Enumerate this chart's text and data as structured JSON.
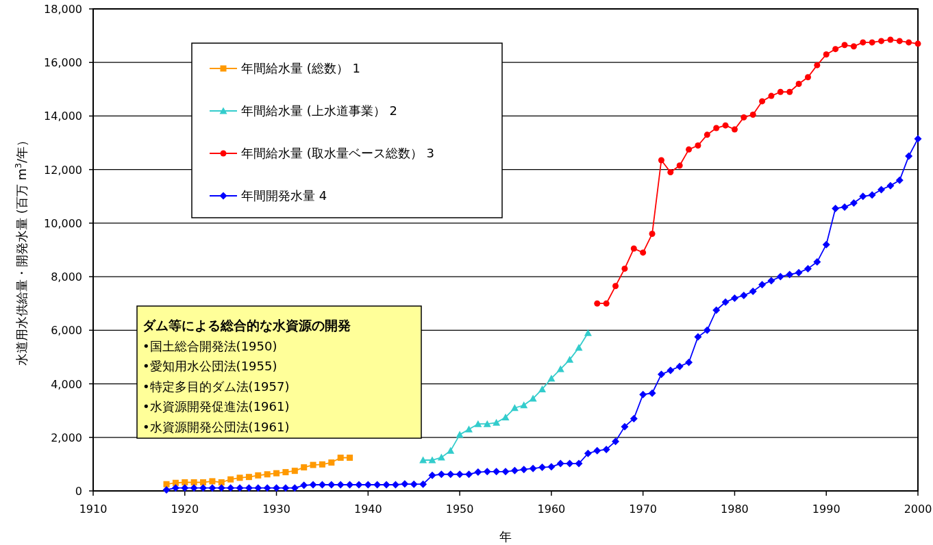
{
  "chart_data": {
    "type": "line",
    "xlabel": "年",
    "ylabel": "水道用水供給量・開発水量 (百万 m$^{3}$/年）",
    "xlim": [
      1910,
      2000
    ],
    "xticks": [
      1910,
      1920,
      1930,
      1940,
      1950,
      1960,
      1970,
      1980,
      1990,
      2000
    ],
    "ylim": [
      0,
      18000
    ],
    "yticks": [
      {
        "value": 0,
        "label": "0"
      },
      {
        "value": 2000,
        "label": "2,000"
      },
      {
        "value": 4000,
        "label": "4,000"
      },
      {
        "value": 6000,
        "label": "6,000"
      },
      {
        "value": 8000,
        "label": "8,000"
      },
      {
        "value": 10000,
        "label": "10,000"
      },
      {
        "value": 12000,
        "label": "12,000"
      },
      {
        "value": 14000,
        "label": "14,000"
      },
      {
        "value": 16000,
        "label": "16,000"
      },
      {
        "value": 18000,
        "label": "18,000"
      }
    ],
    "grid": "y",
    "legend": "top left",
    "line_style": "solid",
    "series": [
      {
        "name": "年間給水量 (総数） 1",
        "color": "#ff9900",
        "marker": "square",
        "x": [
          1918,
          1919,
          1920,
          1921,
          1922,
          1923,
          1924,
          1925,
          1926,
          1927,
          1928,
          1929,
          1930,
          1931,
          1932,
          1933,
          1934,
          1935,
          1936,
          1937,
          1938
        ],
        "values": [
          250,
          300,
          320,
          320,
          320,
          360,
          320,
          430,
          490,
          520,
          580,
          620,
          660,
          700,
          750,
          880,
          970,
          990,
          1060,
          1240,
          1240
        ]
      },
      {
        "name": "年間給水量 (上水道事業） 2",
        "color": "#33cccc",
        "marker": "triangle",
        "x": [
          1946,
          1947,
          1948,
          1949,
          1950,
          1951,
          1952,
          1953,
          1954,
          1955,
          1956,
          1957,
          1958,
          1959,
          1960,
          1961,
          1962,
          1963,
          1964
        ],
        "values": [
          1150,
          1150,
          1250,
          1500,
          2100,
          2300,
          2500,
          2500,
          2550,
          2750,
          3100,
          3200,
          3450,
          3800,
          4200,
          4550,
          4900,
          5350,
          5900
        ]
      },
      {
        "name": "年間給水量 (取水量ベース総数） 3",
        "color": "#ff0000",
        "marker": "circle",
        "x": [
          1965,
          1966,
          1967,
          1968,
          1969,
          1970,
          1971,
          1972,
          1973,
          1974,
          1975,
          1976,
          1977,
          1978,
          1979,
          1980,
          1981,
          1982,
          1983,
          1984,
          1985,
          1986,
          1987,
          1988,
          1989,
          1990,
          1991,
          1992,
          1993,
          1994,
          1995,
          1996,
          1997,
          1998,
          1999,
          2000
        ],
        "values": [
          7000,
          7000,
          7650,
          8300,
          9050,
          8900,
          9600,
          12350,
          11900,
          12150,
          12750,
          12900,
          13300,
          13550,
          13650,
          13500,
          13950,
          14050,
          14550,
          14750,
          14900,
          14900,
          15200,
          15450,
          15900,
          16300,
          16500,
          16650,
          16600,
          16750,
          16750,
          16800,
          16850,
          16800,
          16750,
          16700
        ]
      },
      {
        "name": "年間開発水量 4",
        "color": "#0000ff",
        "marker": "diamond",
        "x": [
          1918,
          1919,
          1920,
          1921,
          1922,
          1923,
          1924,
          1925,
          1926,
          1927,
          1928,
          1929,
          1930,
          1931,
          1932,
          1933,
          1934,
          1935,
          1936,
          1937,
          1938,
          1939,
          1940,
          1941,
          1942,
          1943,
          1944,
          1945,
          1946,
          1947,
          1948,
          1949,
          1950,
          1951,
          1952,
          1953,
          1954,
          1955,
          1956,
          1957,
          1958,
          1959,
          1960,
          1961,
          1962,
          1963,
          1964,
          1965,
          1966,
          1967,
          1968,
          1969,
          1970,
          1971,
          1972,
          1973,
          1974,
          1975,
          1976,
          1977,
          1978,
          1979,
          1980,
          1981,
          1982,
          1983,
          1984,
          1985,
          1986,
          1987,
          1988,
          1989,
          1990,
          1991,
          1992,
          1993,
          1994,
          1995,
          1996,
          1997,
          1998,
          1999,
          2000
        ],
        "values": [
          40,
          110,
          110,
          110,
          110,
          110,
          110,
          110,
          110,
          110,
          110,
          110,
          110,
          110,
          110,
          210,
          230,
          230,
          230,
          230,
          230,
          230,
          230,
          230,
          230,
          230,
          260,
          250,
          250,
          580,
          620,
          620,
          620,
          620,
          700,
          720,
          720,
          720,
          760,
          800,
          840,
          880,
          900,
          1020,
          1020,
          1020,
          1400,
          1500,
          1550,
          1850,
          2400,
          2700,
          3600,
          3650,
          4350,
          4500,
          4650,
          4800,
          5750,
          6000,
          6750,
          7050,
          7200,
          7300,
          7450,
          7700,
          7850,
          8000,
          8080,
          8150,
          8300,
          8550,
          9200,
          10550,
          10600,
          10750,
          11000,
          11050,
          11250,
          11400,
          11600,
          12500,
          13150
        ]
      }
    ],
    "annotations": [
      "ダム等による総合的な水資源の開発",
      "•国土総合開発法(1950)",
      "•愛知用水公団法(1955)",
      "•特定多目的ダム法(1957)",
      "•水資源開発促進法(1961)",
      "•水資源開発公団法(1961)"
    ]
  }
}
